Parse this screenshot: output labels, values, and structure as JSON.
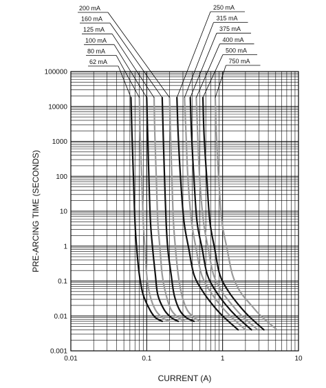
{
  "chart_data": {
    "type": "line",
    "title": "",
    "xlabel": "CURRENT (A)",
    "ylabel": "PRE-ARCING TIME (SECONDS)",
    "xscale": "log",
    "yscale": "log",
    "xlim": [
      0.01,
      10
    ],
    "ylim": [
      0.001,
      100000
    ],
    "grid": true,
    "x_tick_labels": [
      "0.01",
      "0.1",
      "1",
      "10"
    ],
    "y_tick_labels": [
      "0.001",
      "0.01",
      "0.1",
      "1",
      "10",
      "100",
      "1000",
      "10000",
      "100000"
    ],
    "series_colors": {
      "black": "#111111",
      "gray": "#9a9a9a"
    },
    "series": [
      {
        "name": "62 mA",
        "color": "black",
        "x": [
          0.062,
          0.064,
          0.067,
          0.07,
          0.074,
          0.08,
          0.09,
          0.11,
          0.13,
          0.16
        ],
        "y": [
          18000,
          1500,
          80,
          5,
          0.8,
          0.15,
          0.04,
          0.015,
          0.009,
          0.007
        ]
      },
      {
        "name": "80 mA",
        "color": "gray",
        "x": [
          0.08,
          0.082,
          0.086,
          0.09,
          0.095,
          0.1,
          0.11,
          0.13,
          0.16,
          0.2
        ],
        "y": [
          18000,
          1500,
          80,
          5,
          0.8,
          0.15,
          0.04,
          0.015,
          0.009,
          0.007
        ]
      },
      {
        "name": "100 mA",
        "color": "black",
        "x": [
          0.1,
          0.103,
          0.107,
          0.112,
          0.12,
          0.13,
          0.14,
          0.17,
          0.21,
          0.26
        ],
        "y": [
          18000,
          1500,
          80,
          5,
          0.8,
          0.15,
          0.04,
          0.015,
          0.009,
          0.007
        ]
      },
      {
        "name": "125 mA",
        "color": "gray",
        "x": [
          0.125,
          0.128,
          0.134,
          0.14,
          0.15,
          0.16,
          0.18,
          0.21,
          0.26,
          0.32
        ],
        "y": [
          18000,
          1500,
          80,
          5,
          0.8,
          0.15,
          0.04,
          0.015,
          0.009,
          0.007
        ]
      },
      {
        "name": "160 mA",
        "color": "black",
        "x": [
          0.16,
          0.165,
          0.172,
          0.18,
          0.19,
          0.21,
          0.23,
          0.27,
          0.33,
          0.42
        ],
        "y": [
          18000,
          1500,
          80,
          5,
          0.8,
          0.15,
          0.04,
          0.015,
          0.009,
          0.007
        ]
      },
      {
        "name": "200 mA",
        "color": "gray",
        "x": [
          0.2,
          0.206,
          0.215,
          0.225,
          0.24,
          0.26,
          0.29,
          0.34,
          0.42,
          0.52
        ],
        "y": [
          18000,
          1500,
          80,
          5,
          0.8,
          0.15,
          0.04,
          0.015,
          0.009,
          0.007
        ]
      },
      {
        "name": "250 mA",
        "color": "black",
        "x": [
          0.25,
          0.26,
          0.28,
          0.31,
          0.36,
          0.42,
          0.55,
          0.75,
          1.0,
          1.6
        ],
        "y": [
          18000,
          1500,
          80,
          5,
          0.8,
          0.15,
          0.05,
          0.02,
          0.01,
          0.004
        ]
      },
      {
        "name": "315 mA",
        "color": "gray",
        "x": [
          0.315,
          0.33,
          0.35,
          0.39,
          0.45,
          0.53,
          0.69,
          0.94,
          1.26,
          2.0
        ],
        "y": [
          18000,
          1500,
          80,
          5,
          0.8,
          0.15,
          0.05,
          0.02,
          0.01,
          0.004
        ]
      },
      {
        "name": "375 mA",
        "color": "black",
        "x": [
          0.375,
          0.39,
          0.42,
          0.46,
          0.54,
          0.63,
          0.82,
          1.12,
          1.5,
          2.4
        ],
        "y": [
          18000,
          1500,
          80,
          5,
          0.8,
          0.15,
          0.05,
          0.02,
          0.01,
          0.004
        ]
      },
      {
        "name": "400 mA",
        "color": "gray",
        "x": [
          0.45,
          0.47,
          0.5,
          0.56,
          0.65,
          0.76,
          0.98,
          1.35,
          1.8,
          2.9
        ],
        "y": [
          18000,
          1500,
          80,
          5,
          0.8,
          0.15,
          0.05,
          0.02,
          0.01,
          0.004
        ]
      },
      {
        "name": "500 mA",
        "color": "black",
        "x": [
          0.55,
          0.57,
          0.62,
          0.68,
          0.79,
          0.92,
          1.2,
          1.65,
          2.2,
          3.5
        ],
        "y": [
          18000,
          1500,
          80,
          5,
          0.8,
          0.15,
          0.05,
          0.02,
          0.01,
          0.004
        ]
      },
      {
        "name": "750 mA",
        "color": "gray",
        "x": [
          0.8,
          0.83,
          0.89,
          0.98,
          1.15,
          1.35,
          1.7,
          2.4,
          3.2,
          5.2
        ],
        "y": [
          18000,
          1500,
          80,
          5,
          0.8,
          0.15,
          0.05,
          0.02,
          0.01,
          0.004
        ]
      }
    ]
  }
}
